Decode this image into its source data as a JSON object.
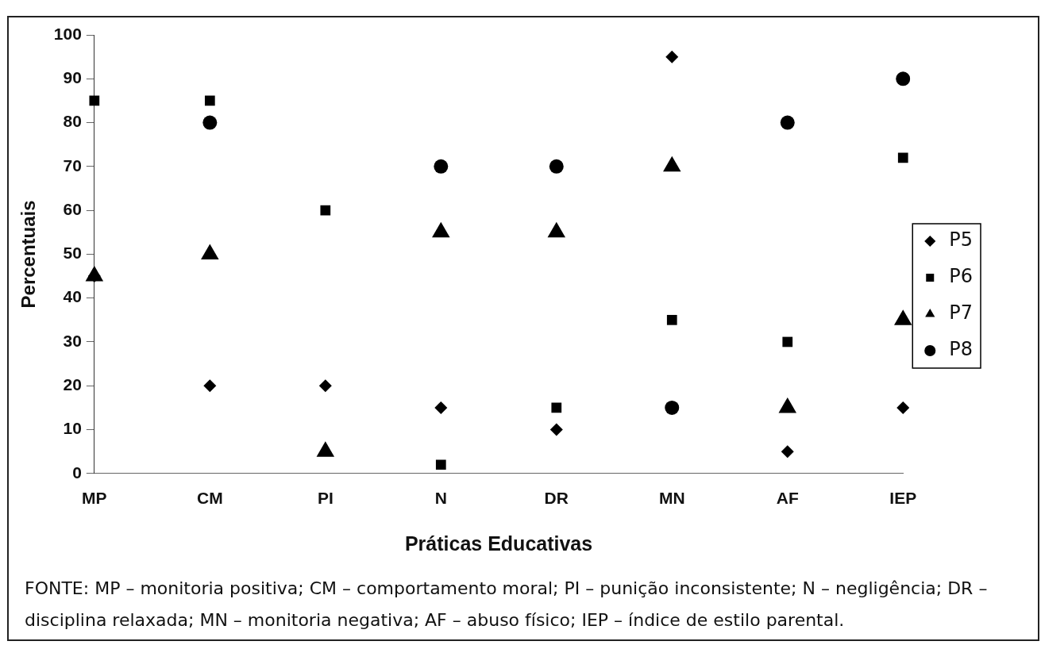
{
  "chart_data": {
    "type": "scatter",
    "xlabel": "Práticas Educativas",
    "ylabel": "Percentuais",
    "categories": [
      "MP",
      "CM",
      "PI",
      "N",
      "DR",
      "MN",
      "AF",
      "IEP"
    ],
    "series": [
      {
        "name": "P5",
        "color": "#000000",
        "marker": "diamond",
        "values": [
          45,
          20,
          20,
          15,
          10,
          95,
          5,
          15
        ]
      },
      {
        "name": "P6",
        "color": "#000000",
        "marker": "square",
        "values": [
          85,
          85,
          60,
          2,
          15,
          35,
          30,
          72
        ]
      },
      {
        "name": "P7",
        "color": "#000000",
        "marker": "triangle",
        "values": [
          45,
          50,
          5,
          55,
          55,
          70,
          15,
          35
        ]
      },
      {
        "name": "P8",
        "color": "#000000",
        "marker": "circle",
        "values": [
          null,
          80,
          null,
          70,
          70,
          15,
          80,
          90
        ]
      }
    ],
    "ylim": [
      0,
      100
    ],
    "yticks": [
      0,
      10,
      20,
      30,
      40,
      50,
      60,
      70,
      80,
      90,
      100
    ],
    "grid": false,
    "legend": "right",
    "annotations": [
      "FONTE: MP – monitoria positiva; CM – comportamento moral; PI – punição inconsistente; N – negligência; DR – disciplina relaxada; MN – monitoria negativa; AF – abuso físico; IEP – índice de estilo parental."
    ]
  }
}
